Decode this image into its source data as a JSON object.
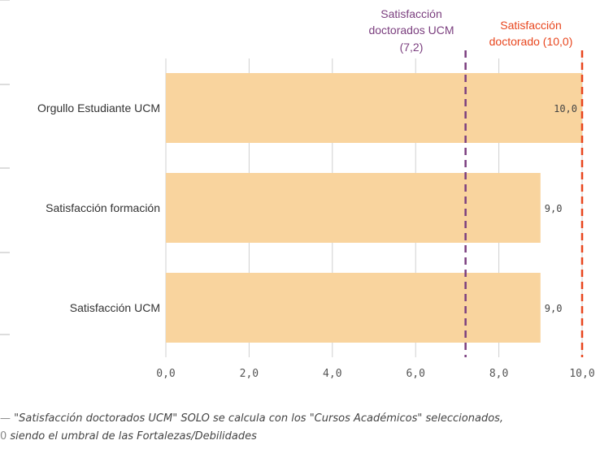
{
  "chart_data": {
    "type": "bar",
    "orientation": "horizontal",
    "categories": [
      "Orgullo Estudiante UCM",
      "Satisfacción formación",
      "Satisfacción UCM"
    ],
    "values": [
      10.0,
      9.0,
      9.0
    ],
    "value_labels": [
      "10,0",
      "9,0",
      "9,0"
    ],
    "xlim": [
      0,
      10
    ],
    "x_ticks": [
      0,
      2,
      4,
      6,
      8,
      10
    ],
    "x_tick_labels": [
      "0,0",
      "2,0",
      "4,0",
      "6,0",
      "8,0",
      "10,0"
    ],
    "grid": true,
    "bar_color": "#f9d49e",
    "reference_lines": [
      {
        "label_lines": [
          "Satisfacción",
          "doctorados UCM",
          "(7,2)"
        ],
        "value": 7.2,
        "color": "#7b3f7f",
        "style": "dashed"
      },
      {
        "label_lines": [
          "Satisfacción",
          "doctorado (10,0)"
        ],
        "value": 10.0,
        "color": "#e8461e",
        "style": "dashed"
      }
    ]
  },
  "footnote": {
    "line1": "\"Satisfacción doctorados UCM\" SOLO se calcula con los \"Cursos Académicos\" seleccionados,",
    "line2": "siendo el umbral de las Fortalezas/Debilidades"
  }
}
